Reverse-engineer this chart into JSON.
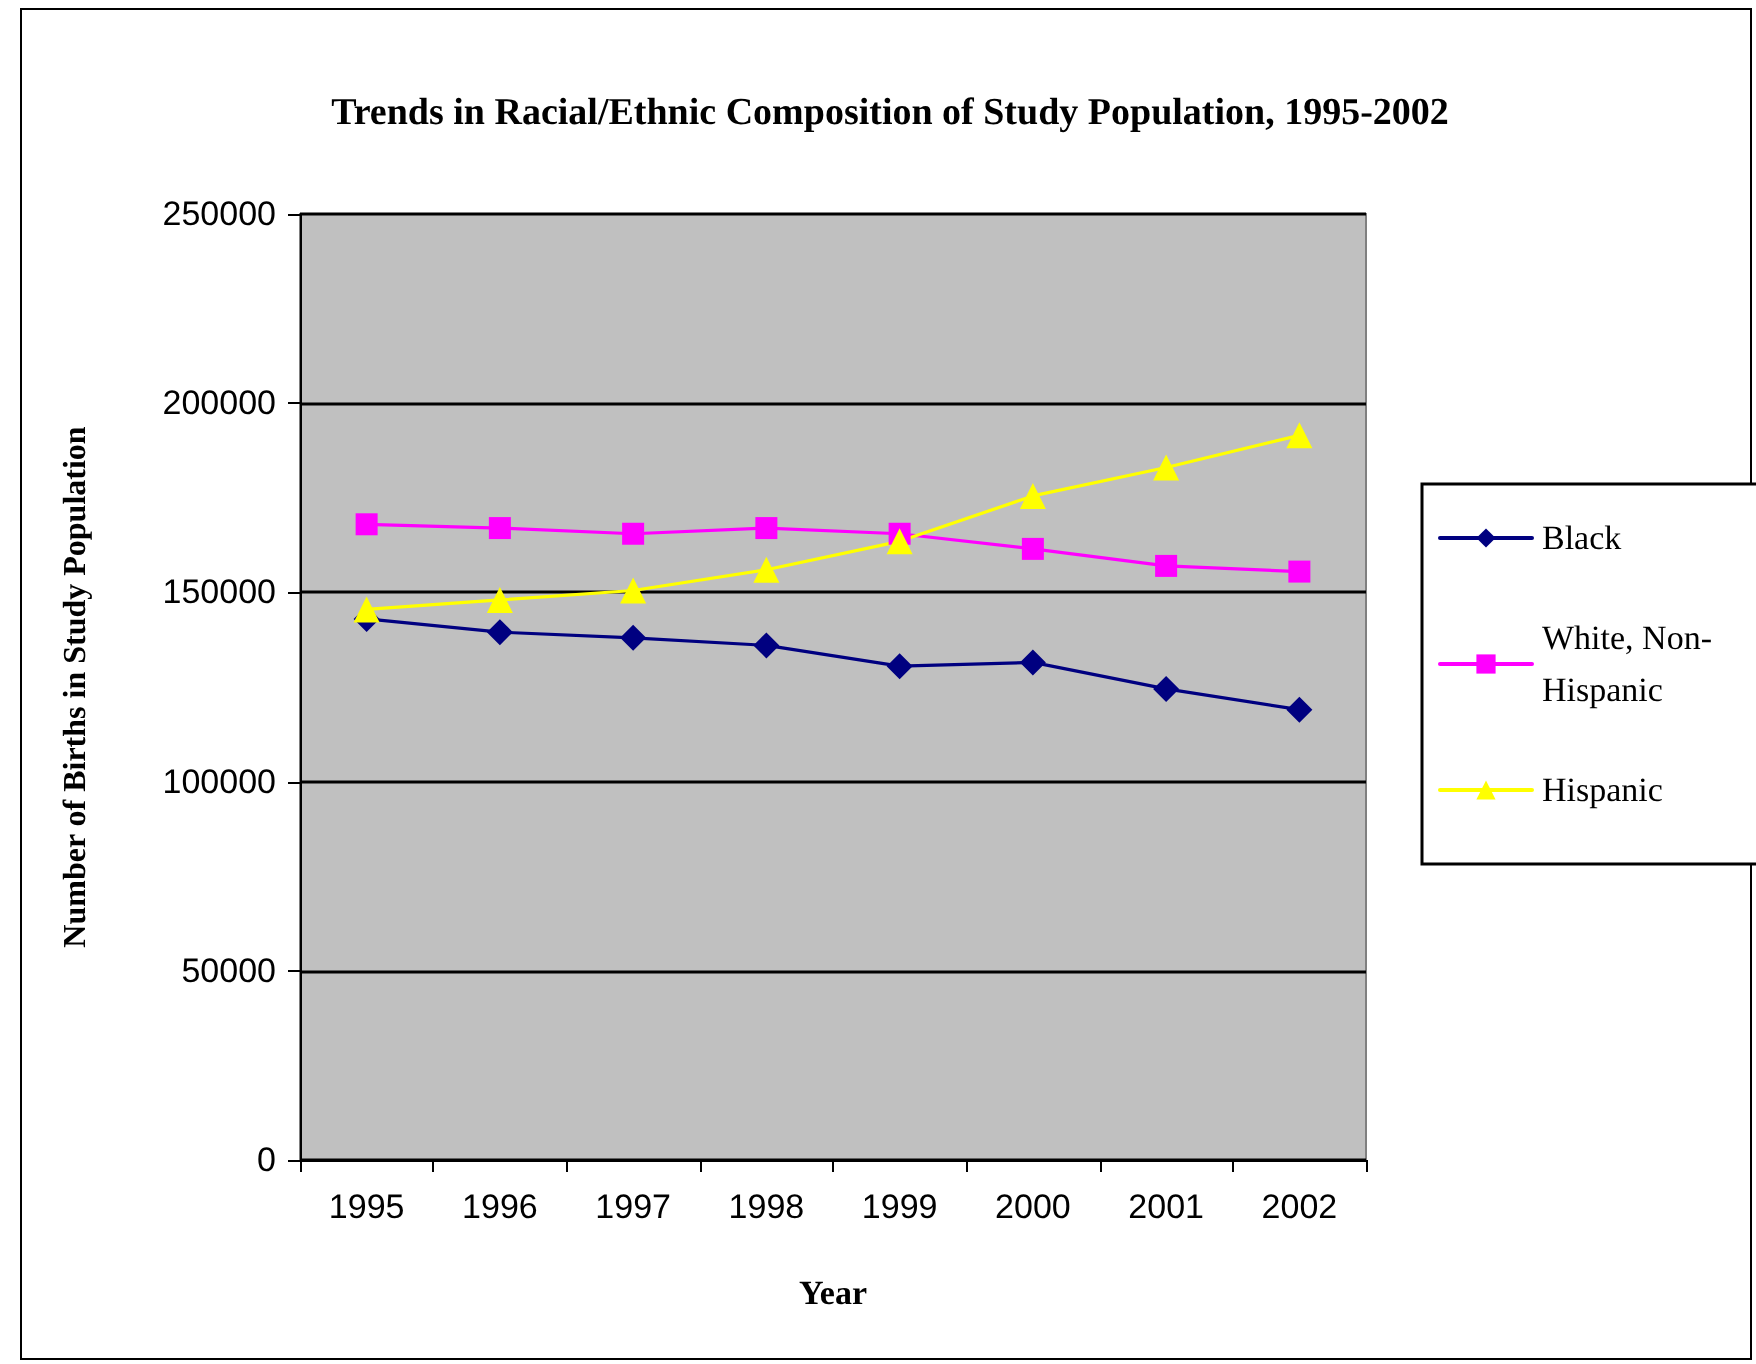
{
  "chart_data": {
    "type": "line",
    "title": "Trends in Racial/Ethnic Composition of Study Population, 1995-2002",
    "xlabel": "Year",
    "ylabel": "Number of Births in Study Population",
    "categories": [
      "1995",
      "1996",
      "1997",
      "1998",
      "1999",
      "2000",
      "2001",
      "2002"
    ],
    "series": [
      {
        "name": "Black",
        "color": "#000080",
        "marker": "diamond",
        "values": [
          143000,
          139500,
          138000,
          136000,
          130500,
          131500,
          124500,
          119000
        ]
      },
      {
        "name": "White, Non-Hispanic",
        "color": "#ff00ff",
        "marker": "square",
        "values": [
          168000,
          167000,
          165500,
          167000,
          165500,
          161500,
          157000,
          155500
        ]
      },
      {
        "name": "Hispanic",
        "color": "#ffff00",
        "marker": "triangle",
        "values": [
          145500,
          148000,
          150500,
          156000,
          163500,
          175500,
          183000,
          191500
        ]
      }
    ],
    "ylim": [
      0,
      250000
    ],
    "yticks": [
      0,
      50000,
      100000,
      150000,
      200000,
      250000
    ],
    "grid": "y",
    "legend": "right",
    "line_style": "solid"
  }
}
